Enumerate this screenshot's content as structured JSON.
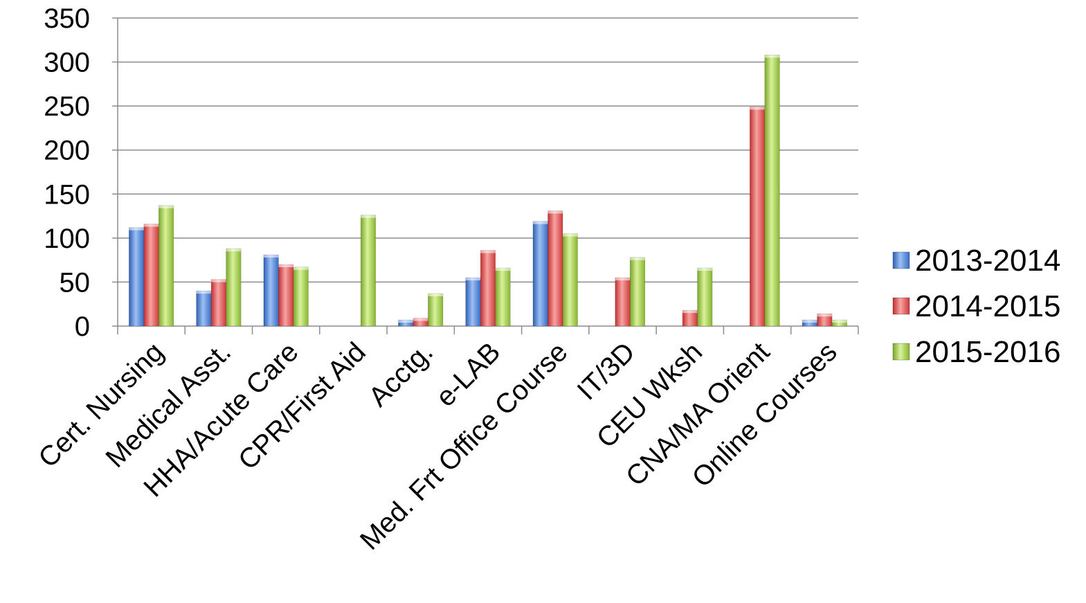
{
  "chart_data": {
    "type": "bar",
    "categories": [
      "Cert. Nursing",
      "Medical Asst.",
      "HHA/Acute Care",
      "CPR/First Aid",
      "Acctg.",
      "e-LAB",
      "Med. Frt Office Course",
      "IT/3D",
      "CEU Wksh",
      "CNA/MA Orient",
      "Online Courses"
    ],
    "series": [
      {
        "name": "2013-2014",
        "color": "#4a7fd6",
        "values": [
          112,
          40,
          81,
          0,
          7,
          55,
          119,
          0,
          0,
          0,
          7
        ]
      },
      {
        "name": "2014-2015",
        "color": "#e05050",
        "values": [
          116,
          53,
          70,
          0,
          9,
          86,
          131,
          55,
          18,
          249,
          14
        ]
      },
      {
        "name": "2015-2016",
        "color": "#9acd32",
        "values": [
          137,
          88,
          67,
          126,
          37,
          66,
          105,
          78,
          66,
          308,
          7
        ]
      }
    ],
    "yticks": [
      "0",
      "50",
      "100",
      "150",
      "200",
      "250",
      "300",
      "350"
    ],
    "ylim": [
      0,
      350
    ],
    "grid": true,
    "legend": "right"
  }
}
